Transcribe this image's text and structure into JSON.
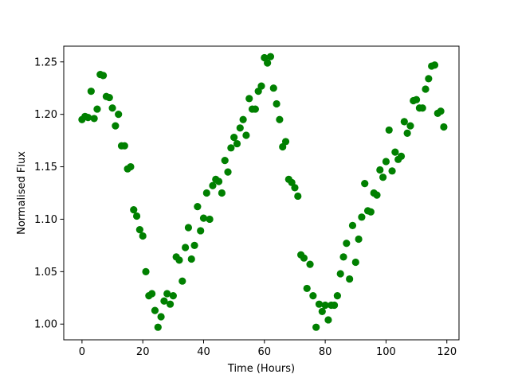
{
  "chart_data": {
    "type": "scatter",
    "title": "",
    "xlabel": "Time (Hours)",
    "ylabel": "Normalised Flux",
    "xlim": [
      -6,
      124
    ],
    "ylim": [
      0.985,
      1.265
    ],
    "xticks": [
      0,
      20,
      40,
      60,
      80,
      100,
      120
    ],
    "xtick_labels": [
      "0",
      "20",
      "40",
      "60",
      "80",
      "100",
      "120"
    ],
    "yticks": [
      1.0,
      1.05,
      1.1,
      1.15,
      1.2,
      1.25
    ],
    "ytick_labels": [
      "1.00",
      "1.05",
      "1.10",
      "1.15",
      "1.20",
      "1.25"
    ],
    "grid": false,
    "legend": false,
    "marker_color": "#008000",
    "series": [
      {
        "x": [
          0,
          1,
          2,
          3,
          4,
          5,
          6,
          7,
          8,
          9,
          10,
          11,
          12,
          13,
          14,
          15,
          16,
          17,
          18,
          19,
          20,
          21,
          22,
          23,
          24,
          25,
          26,
          27,
          28,
          29,
          30,
          31,
          32,
          33,
          34,
          35,
          36,
          37,
          38,
          39,
          40,
          41,
          42,
          43,
          44,
          45,
          46,
          47,
          48,
          49,
          50,
          51,
          52,
          53,
          54,
          55,
          56,
          57,
          58,
          59,
          60,
          61,
          62,
          63,
          64,
          65,
          66,
          67,
          68,
          69,
          70,
          71,
          72,
          73,
          74,
          75,
          76,
          77,
          78,
          79,
          80,
          81,
          82,
          83,
          84,
          85,
          86,
          87,
          88,
          89,
          90,
          91,
          92,
          93,
          94,
          95,
          96,
          97,
          98,
          99,
          100,
          101,
          102,
          103,
          104,
          105,
          106,
          107,
          108,
          109,
          110,
          111,
          112,
          113,
          114,
          115,
          116,
          117,
          118,
          119
        ],
        "y": [
          1.195,
          1.198,
          1.197,
          1.222,
          1.196,
          1.205,
          1.238,
          1.237,
          1.217,
          1.216,
          1.206,
          1.189,
          1.2,
          1.17,
          1.17,
          1.148,
          1.15,
          1.109,
          1.103,
          1.09,
          1.084,
          1.05,
          1.027,
          1.029,
          1.013,
          0.997,
          1.007,
          1.022,
          1.029,
          1.019,
          1.027,
          1.064,
          1.061,
          1.041,
          1.073,
          1.092,
          1.062,
          1.075,
          1.112,
          1.089,
          1.101,
          1.125,
          1.1,
          1.132,
          1.138,
          1.136,
          1.125,
          1.156,
          1.145,
          1.168,
          1.178,
          1.172,
          1.187,
          1.195,
          1.18,
          1.215,
          1.205,
          1.205,
          1.222,
          1.227,
          1.254,
          1.249,
          1.255,
          1.225,
          1.21,
          1.195,
          1.169,
          1.174,
          1.138,
          1.135,
          1.13,
          1.122,
          1.066,
          1.063,
          1.034,
          1.057,
          1.027,
          0.997,
          1.019,
          1.012,
          1.018,
          1.004,
          1.018,
          1.018,
          1.027,
          1.048,
          1.064,
          1.077,
          1.043,
          1.094,
          1.059,
          1.081,
          1.102,
          1.134,
          1.108,
          1.107,
          1.125,
          1.123,
          1.147,
          1.14,
          1.155,
          1.185,
          1.146,
          1.164,
          1.157,
          1.16,
          1.193,
          1.182,
          1.189,
          1.213,
          1.214,
          1.206,
          1.206,
          1.224,
          1.234,
          1.246,
          1.247,
          1.201,
          1.203,
          1.188
        ]
      }
    ]
  }
}
